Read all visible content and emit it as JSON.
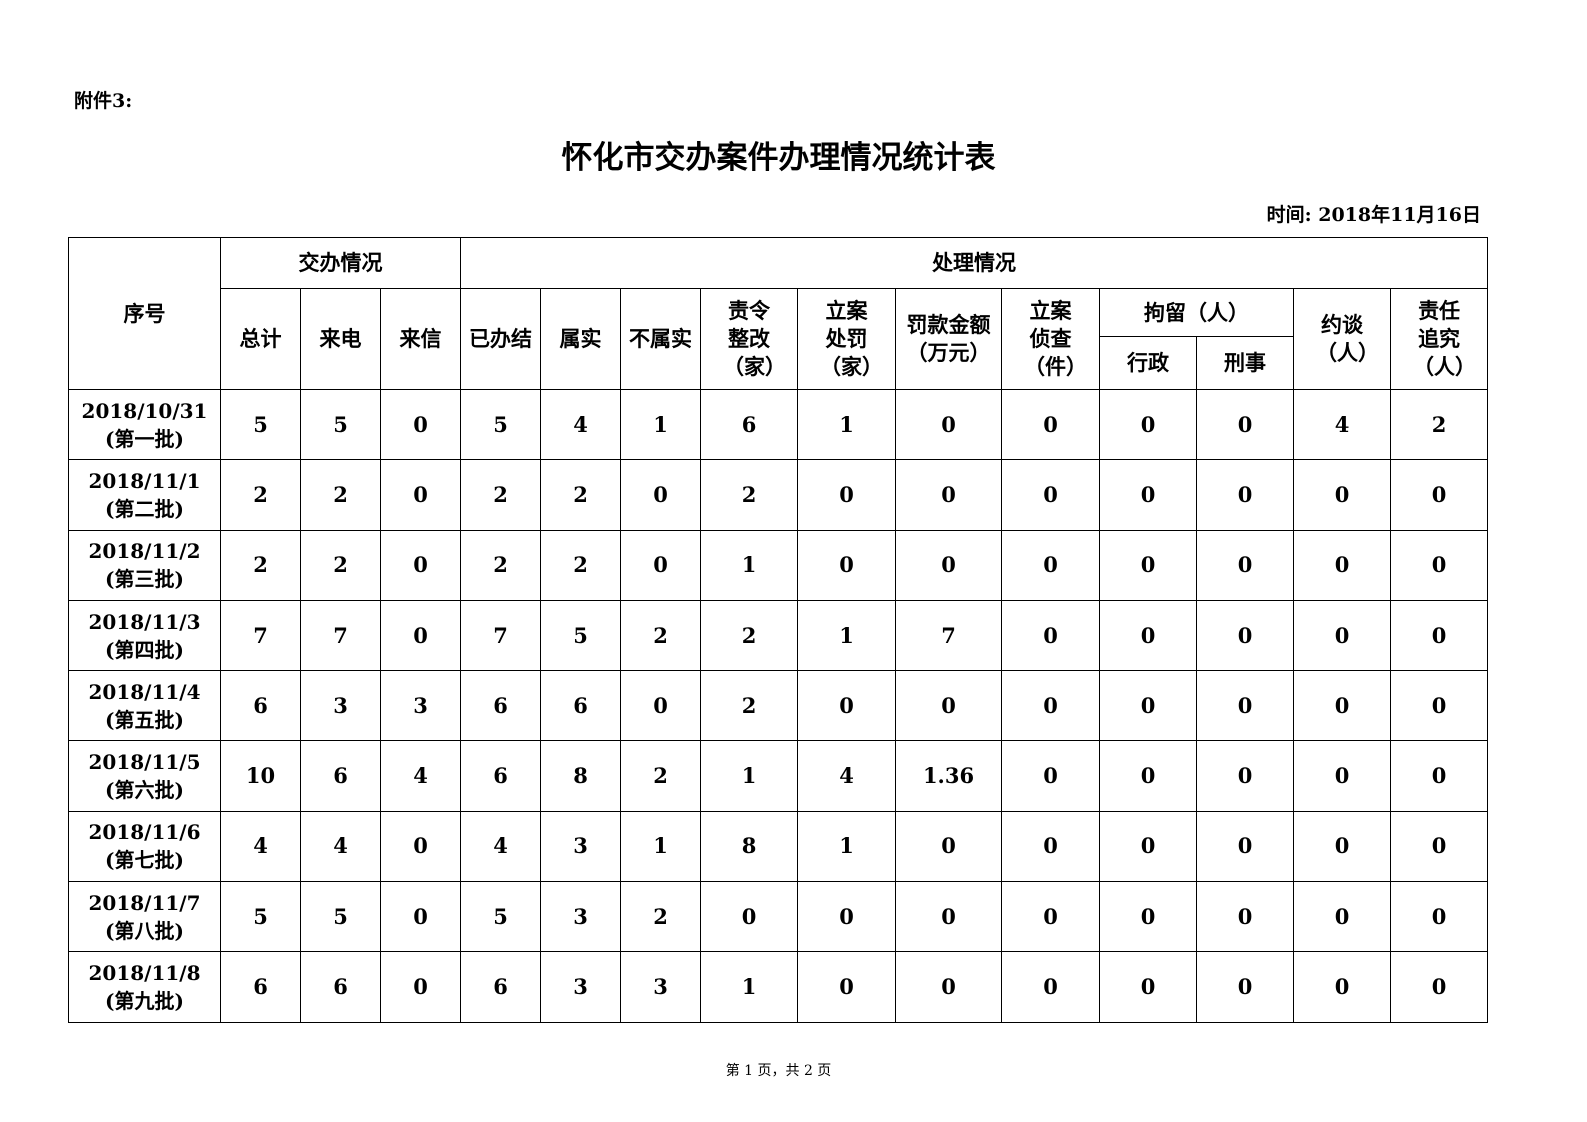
{
  "annex": "附件3:",
  "title": "怀化市交办案件办理情况统计表",
  "date": "时间: 2018年11月16日",
  "headers": {
    "seq": "序号",
    "assigned": "交办情况",
    "handled": "处理情况",
    "total": "总计",
    "phone": "来电",
    "letter": "来信",
    "closed": "已办结",
    "true": "属实",
    "false": "不属实",
    "rectify": "责令整改（家）",
    "penalty": "立案处罚（家）",
    "fine": "罚款金额（万元）",
    "investigate": "立案侦查（件）",
    "detain": "拘留（人）",
    "admin": "行政",
    "criminal": "刑事",
    "interview": "约谈（人）",
    "accountability": "责任追究（人）"
  },
  "rows": [
    {
      "date": "2018/10/31",
      "batch": "(第一批)",
      "values": [
        "5",
        "5",
        "0",
        "5",
        "4",
        "1",
        "6",
        "1",
        "0",
        "0",
        "0",
        "0",
        "4",
        "2"
      ]
    },
    {
      "date": "2018/11/1",
      "batch": "(第二批)",
      "values": [
        "2",
        "2",
        "0",
        "2",
        "2",
        "0",
        "2",
        "0",
        "0",
        "0",
        "0",
        "0",
        "0",
        "0"
      ]
    },
    {
      "date": "2018/11/2",
      "batch": "(第三批)",
      "values": [
        "2",
        "2",
        "0",
        "2",
        "2",
        "0",
        "1",
        "0",
        "0",
        "0",
        "0",
        "0",
        "0",
        "0"
      ]
    },
    {
      "date": "2018/11/3",
      "batch": "(第四批)",
      "values": [
        "7",
        "7",
        "0",
        "7",
        "5",
        "2",
        "2",
        "1",
        "7",
        "0",
        "0",
        "0",
        "0",
        "0"
      ]
    },
    {
      "date": "2018/11/4",
      "batch": "(第五批)",
      "values": [
        "6",
        "3",
        "3",
        "6",
        "6",
        "0",
        "2",
        "0",
        "0",
        "0",
        "0",
        "0",
        "0",
        "0"
      ]
    },
    {
      "date": "2018/11/5",
      "batch": "(第六批)",
      "values": [
        "10",
        "6",
        "4",
        "6",
        "8",
        "2",
        "1",
        "4",
        "1.36",
        "0",
        "0",
        "0",
        "0",
        "0"
      ]
    },
    {
      "date": "2018/11/6",
      "batch": "(第七批)",
      "values": [
        "4",
        "4",
        "0",
        "4",
        "3",
        "1",
        "8",
        "1",
        "0",
        "0",
        "0",
        "0",
        "0",
        "0"
      ]
    },
    {
      "date": "2018/11/7",
      "batch": "(第八批)",
      "values": [
        "5",
        "5",
        "0",
        "5",
        "3",
        "2",
        "0",
        "0",
        "0",
        "0",
        "0",
        "0",
        "0",
        "0"
      ]
    },
    {
      "date": "2018/11/8",
      "batch": "(第九批)",
      "values": [
        "6",
        "6",
        "0",
        "6",
        "3",
        "3",
        "1",
        "0",
        "0",
        "0",
        "0",
        "0",
        "0",
        "0"
      ]
    }
  ],
  "footer": "第 1 页，共 2 页"
}
